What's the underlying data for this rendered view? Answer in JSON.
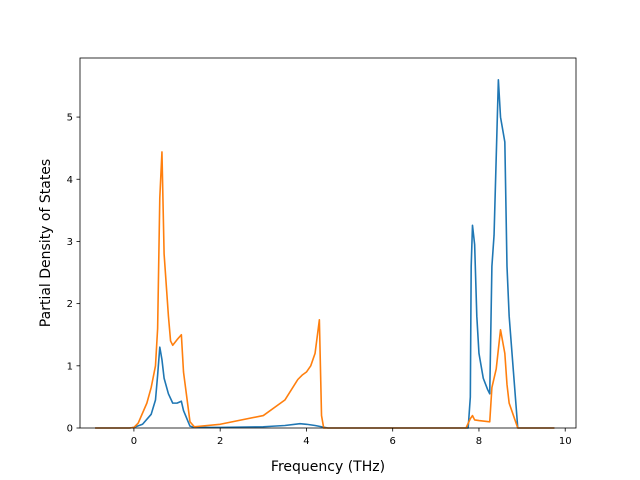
{
  "chart_data": {
    "type": "line",
    "title": "",
    "xlabel": "Frequency (THz)",
    "ylabel": "Partial Density of States",
    "xlim": [
      -1.25,
      10.25
    ],
    "ylim": [
      0,
      5.95
    ],
    "xticks": [
      0,
      2,
      4,
      6,
      8,
      10
    ],
    "yticks": [
      0,
      1,
      2,
      3,
      4,
      5
    ],
    "grid": false,
    "legend": "none",
    "series": [
      {
        "color": "#1f77b4",
        "x": [
          -0.9,
          -0.1,
          0.0,
          0.2,
          0.4,
          0.5,
          0.55,
          0.6,
          0.65,
          0.7,
          0.8,
          0.9,
          1.0,
          1.1,
          1.15,
          1.3,
          1.4,
          2.0,
          3.0,
          3.5,
          3.85,
          4.0,
          4.2,
          4.35,
          4.5,
          7.5,
          7.75,
          7.8,
          7.82,
          7.85,
          7.9,
          7.95,
          8.0,
          8.1,
          8.2,
          8.25,
          8.3,
          8.35,
          8.45,
          8.5,
          8.6,
          8.65,
          8.7,
          8.8,
          8.9,
          9.75
        ],
        "values": [
          0,
          0,
          0.01,
          0.06,
          0.22,
          0.45,
          0.85,
          1.3,
          1.1,
          0.8,
          0.55,
          0.4,
          0.4,
          0.43,
          0.28,
          0.03,
          0.01,
          0.01,
          0.02,
          0.04,
          0.07,
          0.06,
          0.04,
          0.02,
          0,
          0,
          0,
          0.5,
          2.6,
          3.26,
          2.95,
          1.8,
          1.2,
          0.8,
          0.62,
          0.55,
          2.6,
          3.1,
          5.6,
          5.0,
          4.6,
          2.6,
          1.8,
          0.9,
          0,
          0
        ]
      },
      {
        "color": "#ff7f0e",
        "x": [
          -0.9,
          -0.1,
          0.0,
          0.1,
          0.3,
          0.4,
          0.5,
          0.55,
          0.6,
          0.65,
          0.7,
          0.8,
          0.85,
          0.9,
          1.0,
          1.1,
          1.15,
          1.3,
          1.4,
          2.0,
          3.0,
          3.5,
          3.8,
          3.9,
          4.0,
          4.1,
          4.2,
          4.3,
          4.35,
          4.4,
          4.5,
          7.7,
          7.8,
          7.85,
          7.9,
          8.0,
          8.25,
          8.3,
          8.4,
          8.5,
          8.6,
          8.65,
          8.7,
          8.8,
          8.9,
          9.75
        ],
        "values": [
          0,
          0,
          0.01,
          0.08,
          0.4,
          0.65,
          1.0,
          1.6,
          3.7,
          4.44,
          2.8,
          1.8,
          1.4,
          1.33,
          1.42,
          1.5,
          0.9,
          0.1,
          0.02,
          0.06,
          0.2,
          0.45,
          0.78,
          0.85,
          0.9,
          1.0,
          1.2,
          1.74,
          0.2,
          0.0,
          0,
          0,
          0.15,
          0.2,
          0.13,
          0.12,
          0.1,
          0.65,
          0.95,
          1.58,
          1.2,
          0.7,
          0.4,
          0.2,
          0,
          0
        ]
      }
    ]
  }
}
